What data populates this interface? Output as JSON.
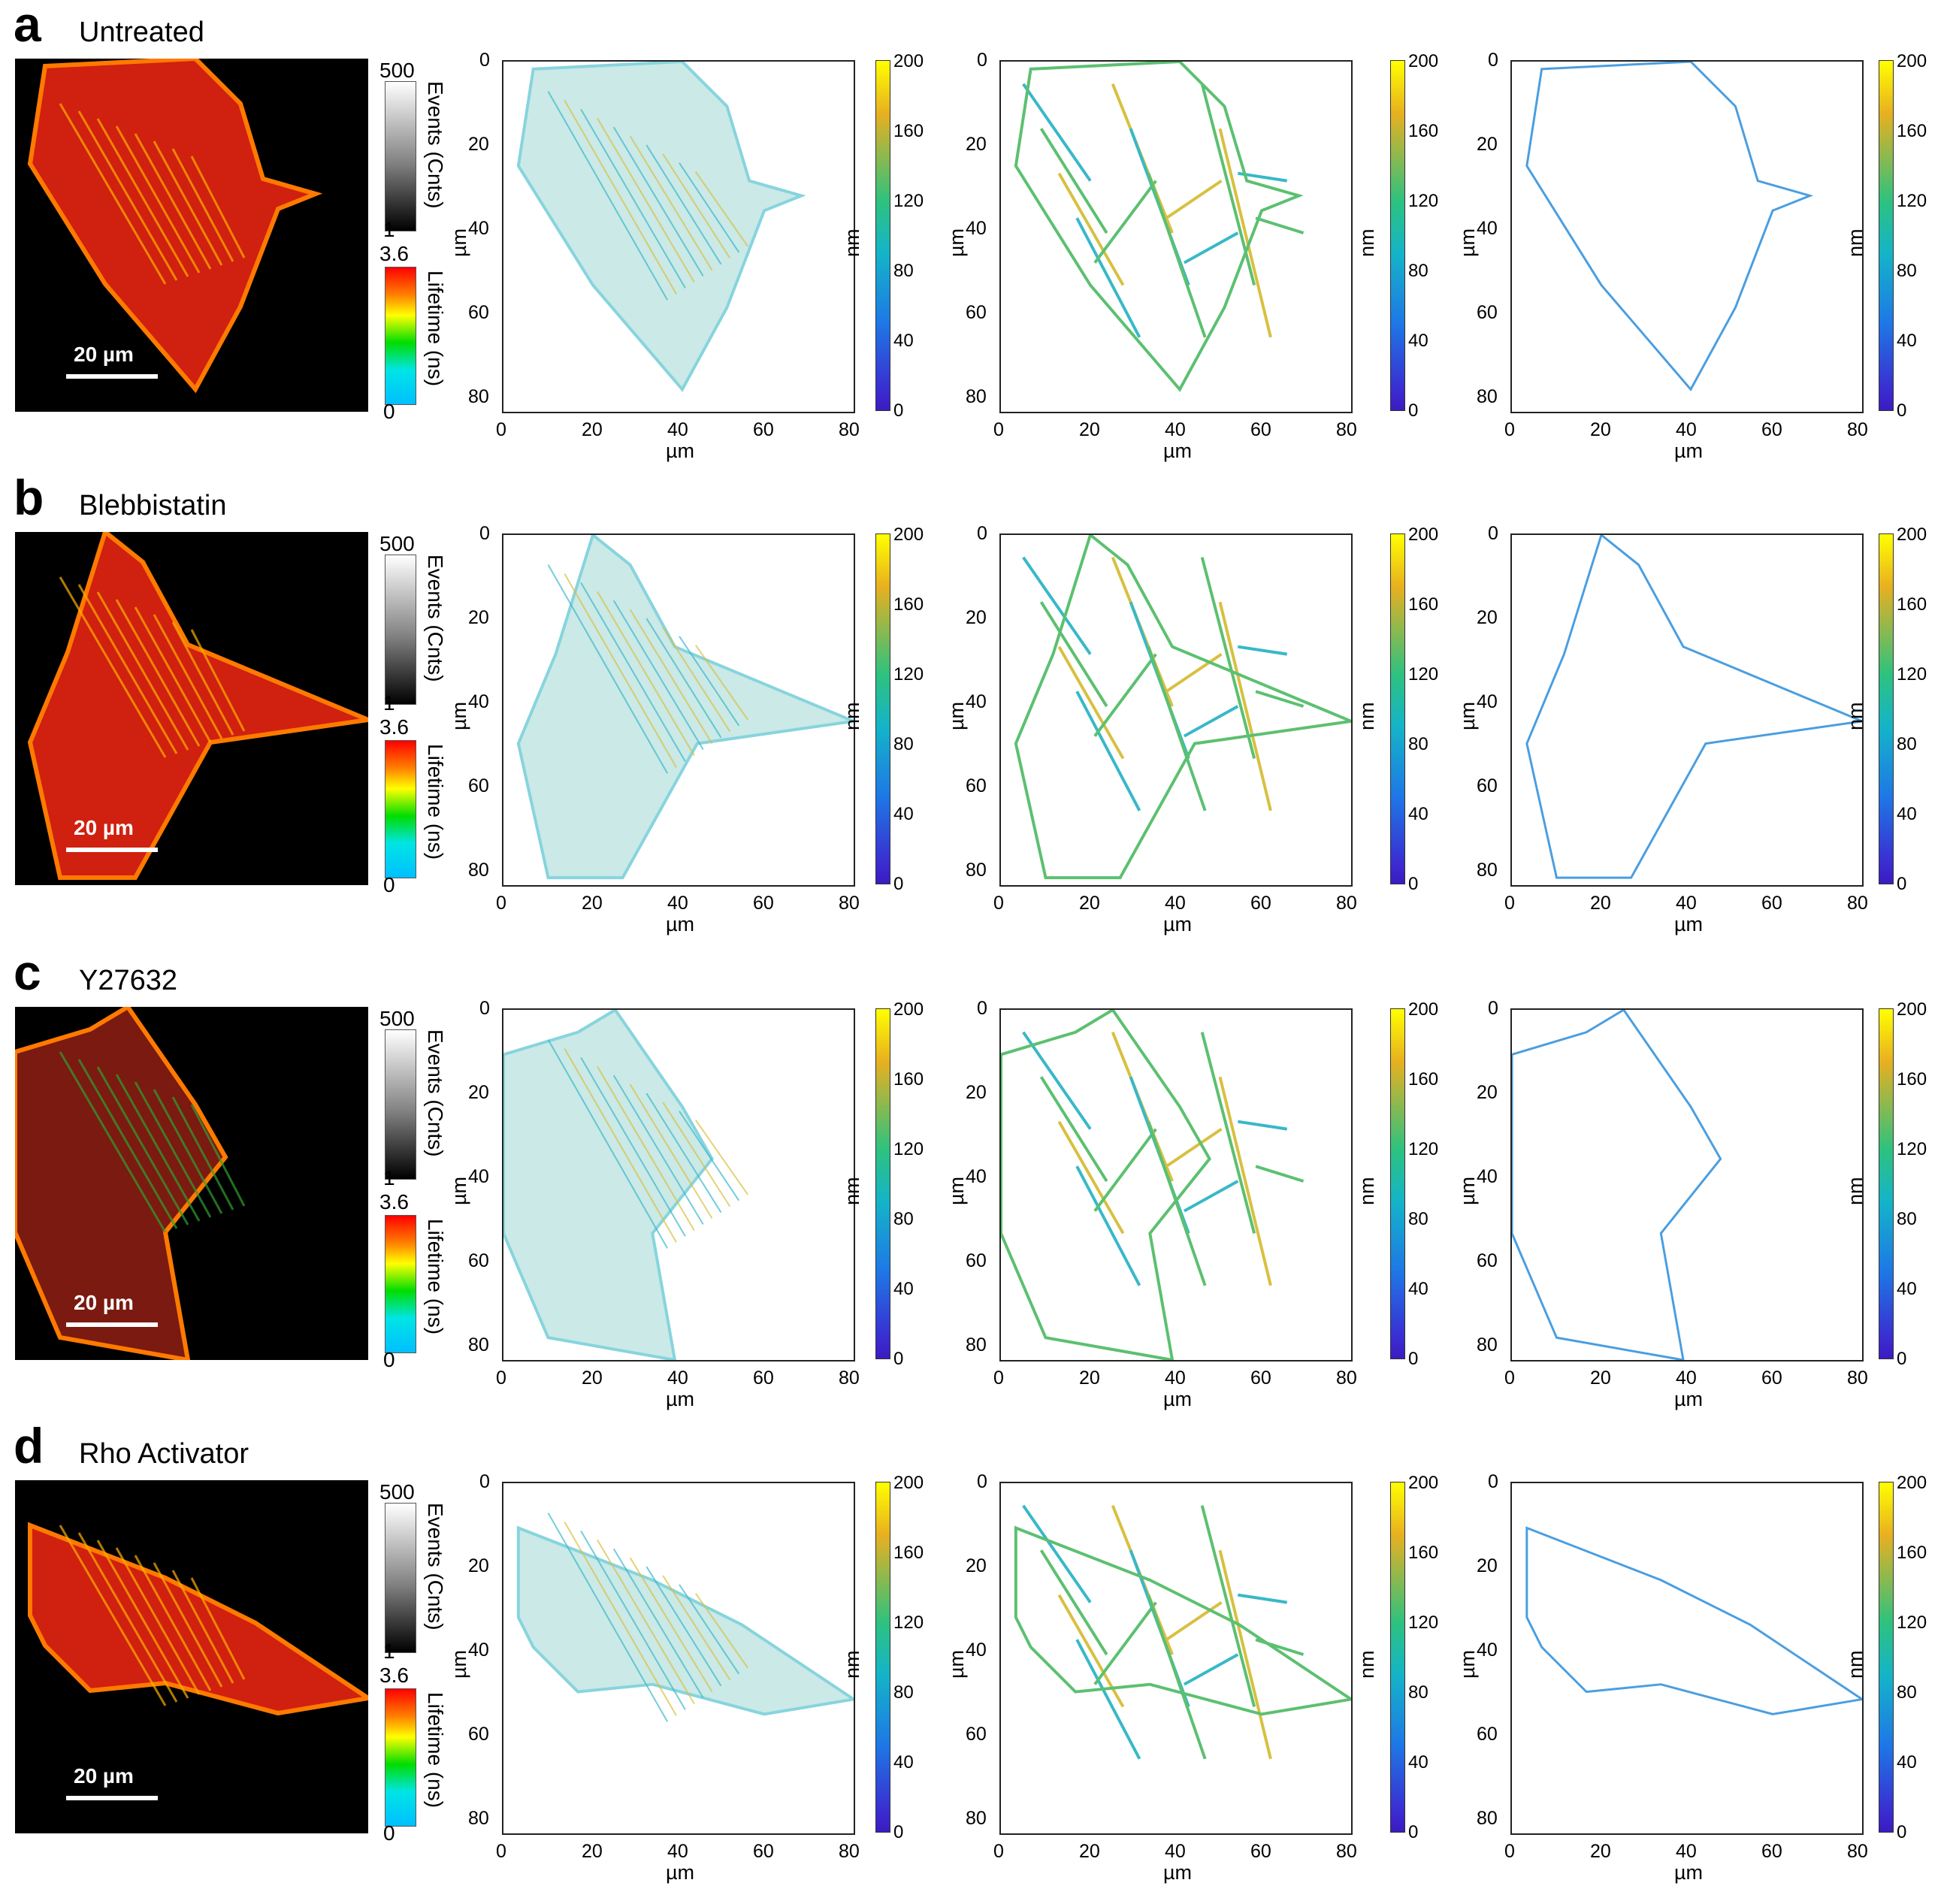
{
  "rows": [
    {
      "letter": "a",
      "condition": "Untreated"
    },
    {
      "letter": "b",
      "condition": "Blebbistatin"
    },
    {
      "letter": "c",
      "condition": "Y27632"
    },
    {
      "letter": "d",
      "condition": "Rho Activator"
    }
  ],
  "micro": {
    "scale_label": "20 µm",
    "events_label": "Events (Cnts)",
    "events_max": "500",
    "events_min": "1",
    "lifetime_label": "Lifetime (ns)",
    "lifetime_max": "3.6",
    "lifetime_min": "0"
  },
  "axes": {
    "ticks": [
      "0",
      "20",
      "40",
      "60",
      "80"
    ],
    "unit": "µm",
    "colorbar_ticks": [
      "200",
      "160",
      "120",
      "80",
      "40",
      "0"
    ],
    "colorbar_label": "nm"
  },
  "colors": {
    "frame": "#222222",
    "cyan": "#38b8c8",
    "yellow": "#d8c040",
    "green": "#5cc070",
    "blue": "#4a9ee0"
  }
}
